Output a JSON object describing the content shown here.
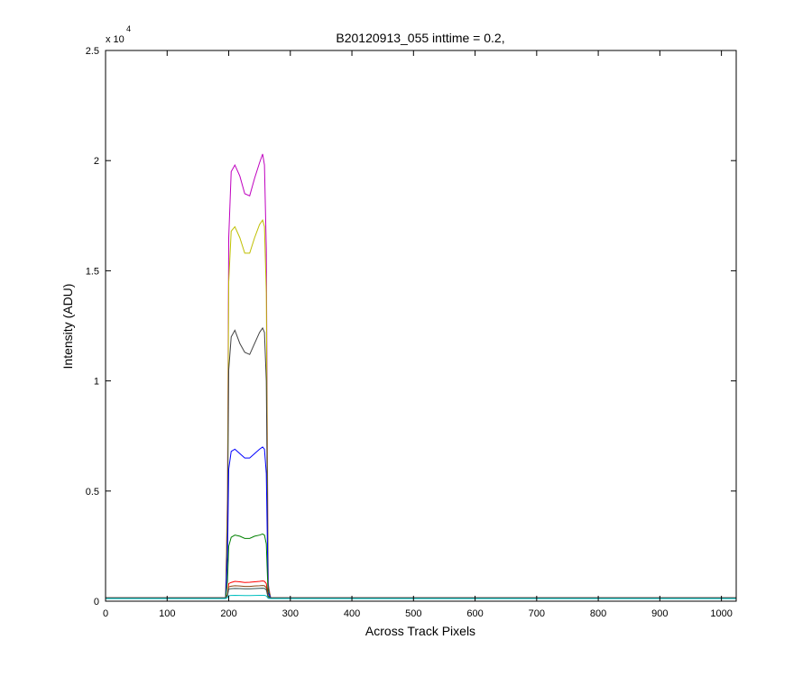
{
  "chart_data": {
    "type": "line",
    "title": "B20120913_055 inttime = 0.2,",
    "xlabel": "Across Track Pixels",
    "ylabel": "Intensity (ADU)",
    "y_exponent_base": "x 10",
    "y_exponent_power": "4",
    "xlim": [
      0,
      1024
    ],
    "ylim": [
      0,
      25000
    ],
    "x_ticks": [
      0,
      100,
      200,
      300,
      400,
      500,
      600,
      700,
      800,
      900,
      1000
    ],
    "x_tick_labels": [
      "0",
      "100",
      "200",
      "300",
      "400",
      "500",
      "600",
      "700",
      "800",
      "900",
      "1000"
    ],
    "y_ticks": [
      0,
      5000,
      10000,
      15000,
      20000,
      25000
    ],
    "y_tick_labels": [
      "0",
      "0.5",
      "1",
      "1.5",
      "2",
      "2.5"
    ],
    "grid": false,
    "profile_x": [
      0,
      195,
      198,
      200,
      204,
      210,
      218,
      226,
      234,
      242,
      250,
      255,
      258,
      261,
      264,
      268,
      1024
    ],
    "series": [
      {
        "color": "#bf00bf",
        "values": [
          150,
          150,
          5000,
          16500,
          19500,
          19800,
          19300,
          18500,
          18400,
          19200,
          19900,
          20300,
          19800,
          16000,
          800,
          150,
          150
        ]
      },
      {
        "color": "#bfbf00",
        "values": [
          150,
          150,
          4500,
          14500,
          16800,
          17000,
          16500,
          15800,
          15800,
          16500,
          17100,
          17300,
          17000,
          14000,
          700,
          150,
          150
        ]
      },
      {
        "color": "#404040",
        "values": [
          150,
          150,
          3500,
          10500,
          12000,
          12300,
          11700,
          11300,
          11200,
          11700,
          12200,
          12400,
          12200,
          10000,
          600,
          150,
          150
        ]
      },
      {
        "color": "#0000ff",
        "values": [
          150,
          150,
          2000,
          6000,
          6800,
          6900,
          6700,
          6500,
          6500,
          6700,
          6900,
          7000,
          6900,
          5800,
          400,
          150,
          150
        ]
      },
      {
        "color": "#008000",
        "values": [
          150,
          150,
          900,
          2500,
          2900,
          3000,
          2950,
          2850,
          2850,
          2950,
          3000,
          3050,
          3000,
          2600,
          250,
          150,
          150
        ]
      },
      {
        "color": "#ff0000",
        "values": [
          150,
          150,
          300,
          800,
          850,
          900,
          880,
          850,
          860,
          880,
          900,
          920,
          900,
          800,
          170,
          150,
          150
        ]
      },
      {
        "color": "#8b4513",
        "values": [
          150,
          150,
          280,
          650,
          680,
          700,
          690,
          670,
          670,
          690,
          700,
          710,
          700,
          620,
          160,
          150,
          150
        ]
      },
      {
        "color": "#2f4f4f",
        "values": [
          150,
          150,
          250,
          550,
          570,
          580,
          575,
          560,
          560,
          575,
          585,
          590,
          580,
          520,
          160,
          150,
          150
        ]
      },
      {
        "color": "#00bfbf",
        "values": [
          120,
          120,
          160,
          250,
          260,
          265,
          262,
          258,
          258,
          262,
          266,
          268,
          265,
          240,
          130,
          120,
          120
        ]
      }
    ]
  }
}
